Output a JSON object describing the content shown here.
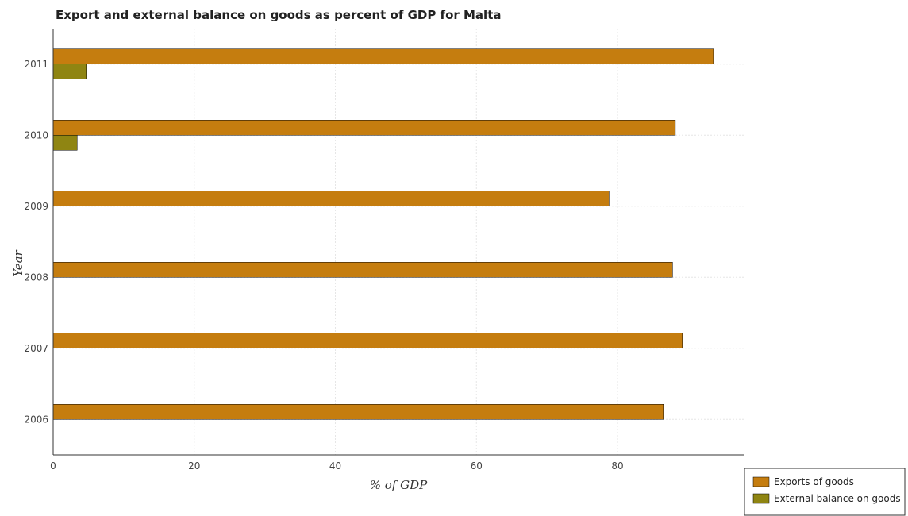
{
  "chart_data": {
    "type": "bar",
    "orientation": "horizontal",
    "title": "Export and external balance on goods as percent of GDP for Malta",
    "xlabel": "% of GDP",
    "ylabel": "Year",
    "categories": [
      "2006",
      "2007",
      "2008",
      "2009",
      "2010",
      "2011"
    ],
    "series": [
      {
        "name": "Exports of goods",
        "color": "#c57d0f",
        "values": [
          86.5,
          89.2,
          87.8,
          78.8,
          88.2,
          93.6
        ]
      },
      {
        "name": "External balance on goods",
        "color": "#8f8512",
        "values": [
          0,
          0,
          0,
          0,
          3.4,
          4.7
        ]
      }
    ],
    "xlim": [
      0,
      98
    ],
    "xticks": [
      0,
      20,
      40,
      60,
      80
    ],
    "grid": true,
    "legend_position": "bottom-right"
  }
}
